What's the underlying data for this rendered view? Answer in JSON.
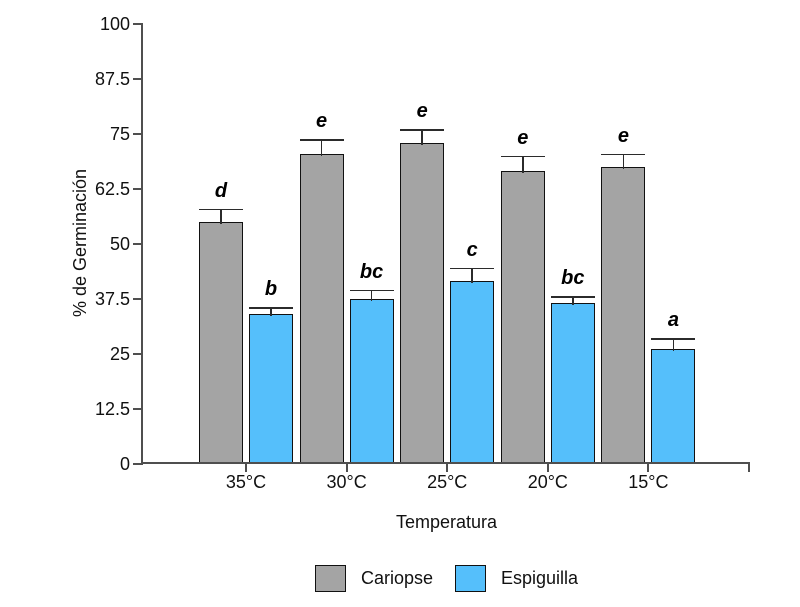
{
  "chart_data": {
    "type": "bar",
    "title": "",
    "xlabel": "Temperatura",
    "ylabel": "% de Germinación",
    "ylim": [
      0,
      100
    ],
    "yticks": [
      "0",
      "12.5",
      "25",
      "37.5",
      "50",
      "62.5",
      "75",
      "87.5",
      "100"
    ],
    "categories": [
      "35°C",
      "30°C",
      "25°C",
      "20°C",
      "15°C"
    ],
    "grid": false,
    "legend_position": "bottom",
    "error_bars": "upper",
    "series": [
      {
        "name": "Cariopse",
        "color": "#A4A4A4",
        "values": [
          55,
          70.5,
          73,
          66.5,
          67.5
        ],
        "errors": [
          3,
          3.3,
          3,
          3.5,
          3
        ],
        "letters": [
          "d",
          "e",
          "e",
          "e",
          "e"
        ]
      },
      {
        "name": "Espiguilla",
        "color": "#55BFFB",
        "values": [
          34,
          37.5,
          41.5,
          36.5,
          26
        ],
        "errors": [
          1.5,
          2,
          3,
          1.5,
          2.5
        ],
        "letters": [
          "b",
          "bc",
          "c",
          "bc",
          "a"
        ]
      }
    ],
    "colors": {
      "axis": "#4f4f4f",
      "bar_border": "#111111"
    }
  }
}
